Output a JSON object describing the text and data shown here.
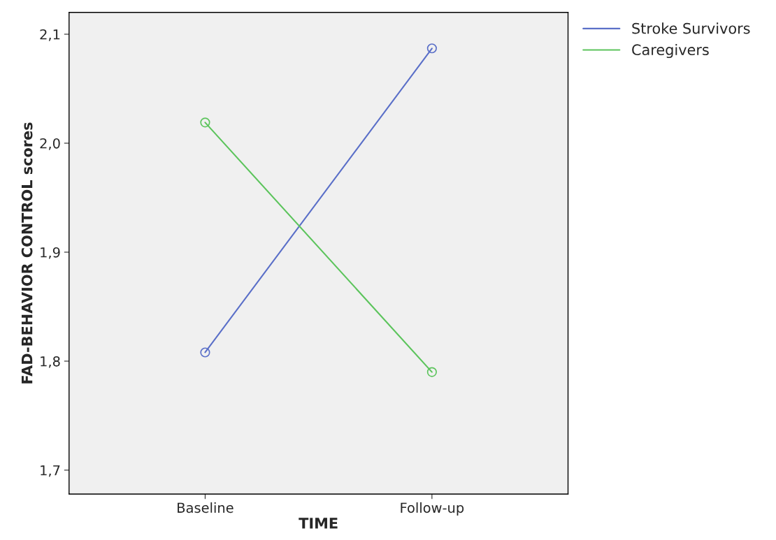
{
  "chart_data": {
    "type": "line",
    "xlabel": "TIME",
    "ylabel": "FAD-BEHAVIOR CONTROL scores",
    "categories": [
      "Baseline",
      "Follow-up"
    ],
    "series": [
      {
        "name": "Stroke Survivors",
        "color": "#5a6fc8",
        "values": [
          1.808,
          2.087
        ]
      },
      {
        "name": "Caregivers",
        "color": "#5cc45c",
        "values": [
          2.019,
          1.79
        ]
      }
    ],
    "ylim": [
      1.678,
      2.12
    ],
    "yticks": [
      {
        "value": 1.7,
        "label": "1,7"
      },
      {
        "value": 1.8,
        "label": "1,8"
      },
      {
        "value": 1.9,
        "label": "1,9"
      },
      {
        "value": 2.0,
        "label": "2,0"
      },
      {
        "value": 2.1,
        "label": "2,1"
      }
    ],
    "marker": "circle",
    "line_style": "solid",
    "grid": false,
    "legend": "right"
  }
}
